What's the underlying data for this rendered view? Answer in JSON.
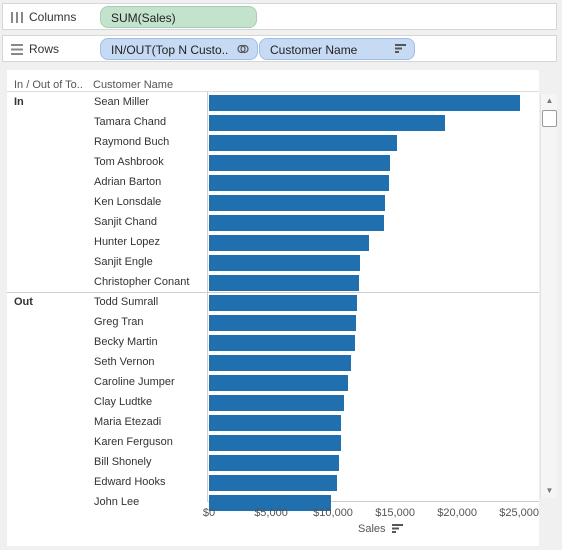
{
  "shelves": {
    "columns": {
      "label": "Columns",
      "icon": "columns-grid-icon",
      "pill": "SUM(Sales)"
    },
    "rows": {
      "label": "Rows",
      "icon": "rows-grid-icon",
      "pills": [
        {
          "label": "IN/OUT(Top N Custo..",
          "icon": "set-icon"
        },
        {
          "label": "Customer Name",
          "icon": "sort-descending-icon"
        }
      ]
    }
  },
  "view": {
    "header_group": "In / Out of To..",
    "header_name": "Customer Name",
    "groups": [
      {
        "label": "In"
      },
      {
        "label": "Out"
      }
    ]
  },
  "chart_data": {
    "type": "bar",
    "orientation": "horizontal",
    "categories": [
      "Sean Miller",
      "Tamara Chand",
      "Raymond Buch",
      "Tom Ashbrook",
      "Adrian Barton",
      "Ken Lonsdale",
      "Sanjit Chand",
      "Hunter Lopez",
      "Sanjit Engle",
      "Christopher Conant",
      "Todd Sumrall",
      "Greg Tran",
      "Becky Martin",
      "Seth Vernon",
      "Caroline Jumper",
      "Clay Ludtke",
      "Maria Etezadi",
      "Karen Ferguson",
      "Bill Shonely",
      "Edward Hooks",
      "John Lee"
    ],
    "groups": [
      "In",
      "In",
      "In",
      "In",
      "In",
      "In",
      "In",
      "In",
      "In",
      "In",
      "Out",
      "Out",
      "Out",
      "Out",
      "Out",
      "Out",
      "Out",
      "Out",
      "Out",
      "Out",
      "Out"
    ],
    "values": [
      25043,
      19052,
      15117,
      14596,
      14474,
      14175,
      14142,
      12873,
      12209,
      12129,
      11892,
      11820,
      11790,
      11471,
      11165,
      10880,
      10664,
      10604,
      10501,
      10311,
      9800
    ],
    "xlabel": "Sales",
    "ylabel": "",
    "xlim": [
      0,
      26600
    ],
    "xticks": [
      0,
      5000,
      10000,
      15000,
      20000,
      25000
    ],
    "xtick_labels": [
      "$0",
      "$5,000",
      "$10,000",
      "$15,000",
      "$20,000",
      "$25,000"
    ],
    "bar_color": "#2070b0",
    "grid": false,
    "sort": "descending"
  }
}
